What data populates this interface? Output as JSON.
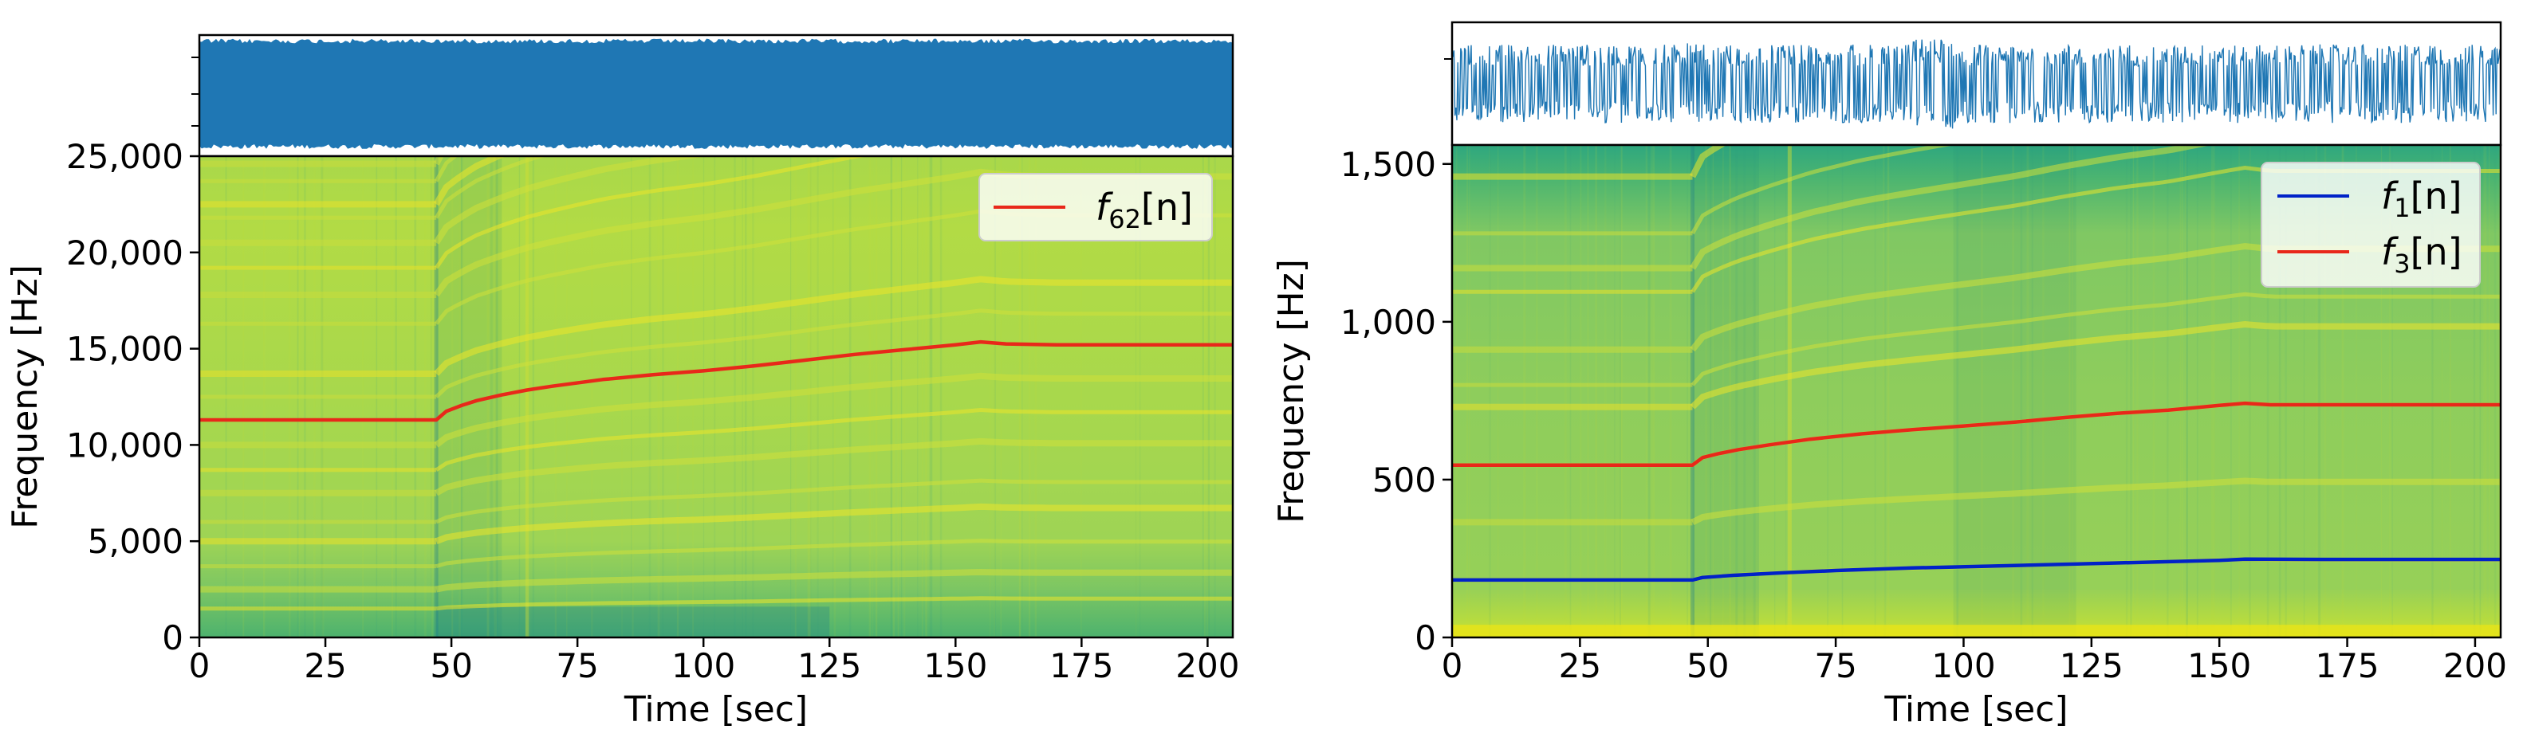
{
  "chart_data": [
    {
      "panel": "left",
      "type": "spectrogram",
      "xlabel": "Time [sec]",
      "ylabel": "Frequency [Hz]",
      "xlim": [
        0,
        205
      ],
      "ylim": [
        0,
        25000
      ],
      "x_ticks": [
        0,
        25,
        50,
        75,
        100,
        125,
        150,
        175,
        200
      ],
      "x_tick_labels": [
        "0",
        "25",
        "50",
        "75",
        "100",
        "125",
        "150",
        "175",
        "200"
      ],
      "y_ticks": [
        0,
        5000,
        10000,
        15000,
        20000,
        25000
      ],
      "y_tick_labels": [
        "0",
        "5,000",
        "10,000",
        "15,000",
        "20,000",
        "25,000"
      ],
      "legend": {
        "placement": "top-right",
        "entries": [
          {
            "name": "f62[n]",
            "italic": "f",
            "subscript": "62",
            "suffix": "[n]",
            "color": "#e8281a"
          }
        ]
      },
      "series": [
        {
          "name": "f62[n]",
          "color": "#e8281a",
          "x": [
            0,
            10,
            20,
            30,
            40,
            47,
            49,
            52,
            55,
            60,
            65,
            70,
            80,
            90,
            100,
            110,
            120,
            130,
            140,
            150,
            155,
            160,
            170,
            180,
            190,
            200,
            205
          ],
          "y": [
            11300,
            11300,
            11300,
            11300,
            11300,
            11300,
            11750,
            12050,
            12300,
            12600,
            12850,
            13050,
            13400,
            13650,
            13850,
            14100,
            14400,
            14700,
            14950,
            15200,
            15350,
            15250,
            15200,
            15200,
            15200,
            15200,
            15200
          ]
        }
      ],
      "spectrogram": {
        "colormap": "yellow-green",
        "harmonic_bands_hz": [
          1500,
          2500,
          3700,
          5000,
          6000,
          7500,
          8700,
          10000,
          12500,
          13700,
          16300,
          17800,
          19200,
          20500,
          21800,
          22500,
          23700,
          24600
        ]
      },
      "waveform": {
        "color": "#1f77b4",
        "fill_from": 0.06,
        "fill_to": 0.97
      }
    },
    {
      "panel": "right",
      "type": "spectrogram",
      "xlabel": "Time [sec]",
      "ylabel": "Frequency [Hz]",
      "xlim": [
        0,
        205
      ],
      "ylim": [
        0,
        1560
      ],
      "x_ticks": [
        0,
        25,
        50,
        75,
        100,
        125,
        150,
        175,
        200
      ],
      "x_tick_labels": [
        "0",
        "25",
        "50",
        "75",
        "100",
        "125",
        "150",
        "175",
        "200"
      ],
      "y_ticks": [
        0,
        500,
        1000,
        1500
      ],
      "y_tick_labels": [
        "0",
        "500",
        "1,000",
        "1,500"
      ],
      "legend": {
        "placement": "top-right",
        "entries": [
          {
            "name": "f1[n]",
            "italic": "f",
            "subscript": "1",
            "suffix": "[n]",
            "color": "#0022c8"
          },
          {
            "name": "f3[n]",
            "italic": "f",
            "subscript": "3",
            "suffix": "[n]",
            "color": "#e8281a"
          }
        ]
      },
      "series": [
        {
          "name": "f1[n]",
          "color": "#0022c8",
          "x": [
            0,
            20,
            40,
            47,
            49,
            55,
            65,
            75,
            90,
            110,
            130,
            150,
            155,
            170,
            190,
            205
          ],
          "y": [
            182,
            182,
            182,
            182,
            190,
            197,
            205,
            212,
            220,
            228,
            236,
            244,
            248,
            247,
            247,
            247
          ]
        },
        {
          "name": "f3[n]",
          "color": "#e8281a",
          "x": [
            0,
            20,
            40,
            47,
            49,
            52,
            56,
            62,
            70,
            80,
            90,
            100,
            110,
            120,
            130,
            140,
            150,
            155,
            160,
            180,
            205
          ],
          "y": [
            546,
            546,
            546,
            546,
            570,
            582,
            595,
            610,
            628,
            645,
            658,
            670,
            682,
            697,
            710,
            720,
            735,
            742,
            737,
            737,
            737
          ]
        }
      ],
      "spectrogram": {
        "colormap": "yellow-green",
        "harmonic_bands_hz": [
          182,
          365,
          546,
          730,
          800,
          912,
          1095,
          1170,
          1280,
          1460
        ]
      },
      "waveform": {
        "color": "#1f77b4",
        "center": 0.5,
        "amplitude": 0.32
      }
    }
  ]
}
